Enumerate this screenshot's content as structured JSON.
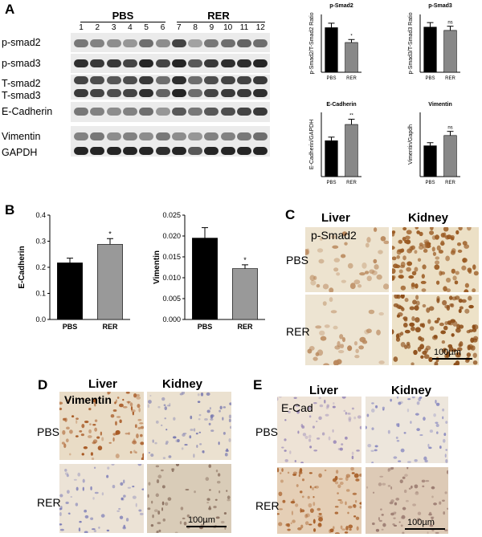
{
  "panels": {
    "A": "A",
    "B": "B",
    "C": "C",
    "D": "D",
    "E": "E"
  },
  "blot": {
    "group_left": "PBS",
    "group_right": "RER",
    "lanes": [
      "1",
      "2",
      "3",
      "4",
      "5",
      "6",
      "7",
      "8",
      "9",
      "10",
      "11",
      "12"
    ],
    "rows": [
      "p-smad2",
      "p-smad3",
      "T-smad2",
      "T-smad3",
      "E-Cadherin",
      "Vimentin",
      "GAPDH"
    ]
  },
  "chart_data": [
    {
      "type": "bar",
      "title": "p-Smad2",
      "ylabel": "p-Smad2/T-Smad2 Ratio",
      "categories": [
        "PBS",
        "RER"
      ],
      "values": [
        0.108,
        0.072
      ],
      "annotations": [
        "",
        "*"
      ],
      "colors": [
        "#000000",
        "#888888"
      ]
    },
    {
      "type": "bar",
      "title": "p-Smad3",
      "ylabel": "p-Smad3/T-Smad3 Ratio",
      "categories": [
        "PBS",
        "RER"
      ],
      "values": [
        0.082,
        0.076
      ],
      "annotations": [
        "",
        "ns"
      ],
      "colors": [
        "#000000",
        "#888888"
      ]
    },
    {
      "type": "bar",
      "title": "E-Cadherin",
      "ylabel": "E-Cadherin/GAPDH",
      "categories": [
        "PBS",
        "RER"
      ],
      "values": [
        0.095,
        0.138
      ],
      "annotations": [
        "",
        "**"
      ],
      "colors": [
        "#000000",
        "#888888"
      ]
    },
    {
      "type": "bar",
      "title": "Vimentin",
      "ylabel": "Vimentin/Gapdh",
      "categories": [
        "PBS",
        "RER"
      ],
      "values": [
        0.36,
        0.48
      ],
      "annotations": [
        "",
        "ns"
      ],
      "colors": [
        "#000000",
        "#888888"
      ]
    },
    {
      "type": "bar",
      "title": "",
      "ylabel": "E-Cadherin",
      "categories": [
        "PBS",
        "RER"
      ],
      "values": [
        0.217,
        0.288
      ],
      "errors": [
        0.018,
        0.022
      ],
      "ylim": [
        0.0,
        0.4
      ],
      "yticks": [
        "0.0",
        "0.1",
        "0.2",
        "0.3",
        "0.4"
      ],
      "annotations": [
        "",
        "*"
      ],
      "colors": [
        "#000000",
        "#999999"
      ]
    },
    {
      "type": "bar",
      "title": "",
      "ylabel": "Vimentin",
      "categories": [
        "PBS",
        "RER"
      ],
      "values": [
        0.0195,
        0.0122
      ],
      "errors": [
        0.0025,
        0.0009
      ],
      "ylim": [
        0.0,
        0.025
      ],
      "yticks": [
        "0.000",
        "0.005",
        "0.010",
        "0.015",
        "0.020",
        "0.025"
      ],
      "annotations": [
        "",
        "*"
      ],
      "colors": [
        "#000000",
        "#999999"
      ]
    }
  ],
  "micro": {
    "liver": "Liver",
    "kidney": "Kidney",
    "pbs": "PBS",
    "rer": "RER",
    "c_stain": "p-Smad2",
    "d_stain": "Vimentin",
    "e_stain": "E-Cad",
    "scale": "100µm"
  }
}
